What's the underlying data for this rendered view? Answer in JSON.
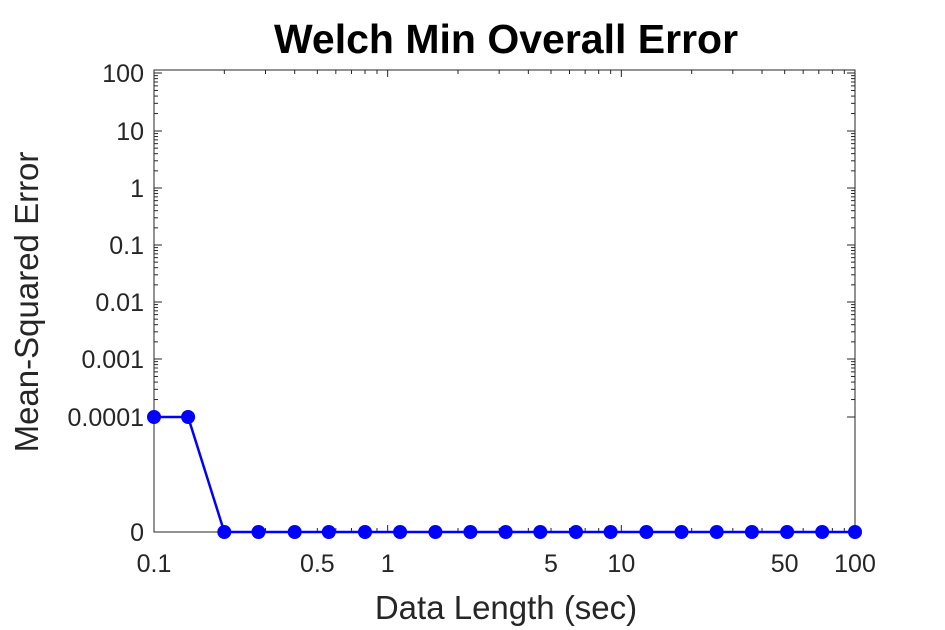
{
  "chart_data": {
    "type": "line",
    "title": "Welch Min Overall Error",
    "xlabel": "Data Length (sec)",
    "ylabel": "Mean-Squared Error",
    "x_scale": "log",
    "xlim": [
      0.1,
      100
    ],
    "x_ticks": [
      {
        "value": 0.1,
        "label": "0.1"
      },
      {
        "value": 0.5,
        "label": "0.5"
      },
      {
        "value": 1,
        "label": "1"
      },
      {
        "value": 5,
        "label": "5"
      },
      {
        "value": 10,
        "label": "10"
      },
      {
        "value": 50,
        "label": "50"
      },
      {
        "value": 100,
        "label": "100"
      }
    ],
    "y_ticks": [
      "100",
      "10",
      "1",
      "0.1",
      "0.01",
      "0.001",
      "0.0001",
      "0"
    ],
    "grid": false,
    "series": [
      {
        "color": "#0000ff",
        "marker": "circle",
        "x": [
          0.1,
          0.14,
          0.2,
          0.28,
          0.4,
          0.56,
          0.8,
          1.13,
          1.6,
          2.26,
          3.2,
          4.5,
          6.4,
          9.0,
          12.8,
          18.1,
          25.6,
          36.2,
          51.2,
          72.4,
          100
        ],
        "y": [
          "0.0001",
          "0.0001",
          "0",
          "0",
          "0",
          "0",
          "0",
          "0",
          "0",
          "0",
          "0",
          "0",
          "0",
          "0",
          "0",
          "0",
          "0",
          "0",
          "0",
          "0",
          "0"
        ]
      }
    ]
  }
}
